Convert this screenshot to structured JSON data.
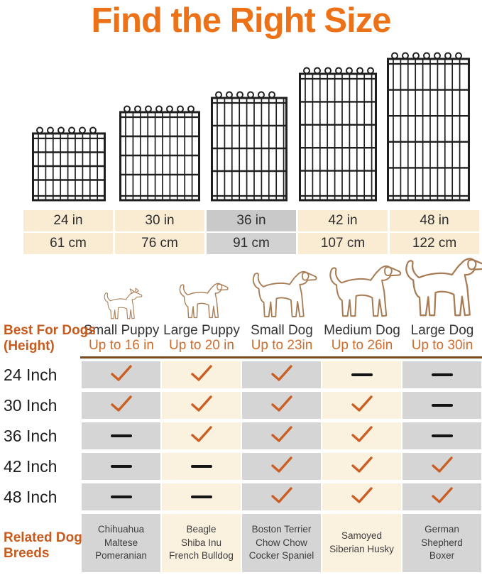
{
  "title": "Find the Right Size",
  "colors": {
    "title_orange": "#ED7116",
    "side_label_orange": "#C75A1C",
    "up_to_orange": "#CF6C2C",
    "check_orange": "#CB5E23",
    "divider_brown": "#7C4A1F",
    "matrix_gray_column": "#D5D5D5",
    "matrix_cream_column": "#FAF1DE",
    "size_table_cream": "#FAECD3",
    "size_table_highlight_gray": "#C9C9C9",
    "wire_black": "#1f1f1f",
    "dog_outline_brown": "#A87C55"
  },
  "icons": {
    "crate_panel": "wire-grid-panel-icon",
    "dog_silhouette": "dog-outline-icon",
    "check": "check-icon",
    "dash": "dash-icon"
  },
  "size_table": {
    "columns": [
      {
        "inches": "24 in",
        "cm": "61 cm"
      },
      {
        "inches": "30 in",
        "cm": "76 cm"
      },
      {
        "inches": "36 in",
        "cm": "91 cm"
      },
      {
        "inches": "42 in",
        "cm": "107 cm"
      },
      {
        "inches": "48 in",
        "cm": "122 cm"
      }
    ],
    "highlighted_index": 2
  },
  "dog_columns": [
    {
      "name": "Small Puppy",
      "max_height": "Up to 16 in"
    },
    {
      "name": "Large Puppy",
      "max_height": "Up to 20 in"
    },
    {
      "name": "Small Dog",
      "max_height": "Up to 23in"
    },
    {
      "name": "Medium Dog",
      "max_height": "Up to 26in"
    },
    {
      "name": "Large Dog",
      "max_height": "Up to 30in"
    }
  ],
  "left_panel": {
    "best_for_lines": [
      "Best For Dogs",
      "(Height)"
    ],
    "related_lines": [
      "Related Dog",
      "Breeds"
    ]
  },
  "compatibility": {
    "rows": [
      {
        "label": "24 Inch",
        "cells": [
          "check",
          "check",
          "check",
          "dash",
          "dash"
        ]
      },
      {
        "label": "30 Inch",
        "cells": [
          "check",
          "check",
          "check",
          "check",
          "dash"
        ]
      },
      {
        "label": "36 Inch",
        "cells": [
          "dash",
          "check",
          "check",
          "check",
          "dash"
        ]
      },
      {
        "label": "42 Inch",
        "cells": [
          "dash",
          "dash",
          "check",
          "check",
          "check"
        ]
      },
      {
        "label": "48 Inch",
        "cells": [
          "dash",
          "dash",
          "check",
          "check",
          "check"
        ]
      }
    ]
  },
  "breeds": [
    [
      "Chihuahua",
      "Maltese",
      "Pomeranian"
    ],
    [
      "Beagle",
      "Shiba Inu",
      "French Bulldog"
    ],
    [
      "Boston Terrier",
      "Chow Chow",
      "Cocker Spaniel"
    ],
    [
      "Samoyed",
      "Siberian Husky"
    ],
    [
      "German",
      "Shepherd",
      "Boxer"
    ]
  ]
}
